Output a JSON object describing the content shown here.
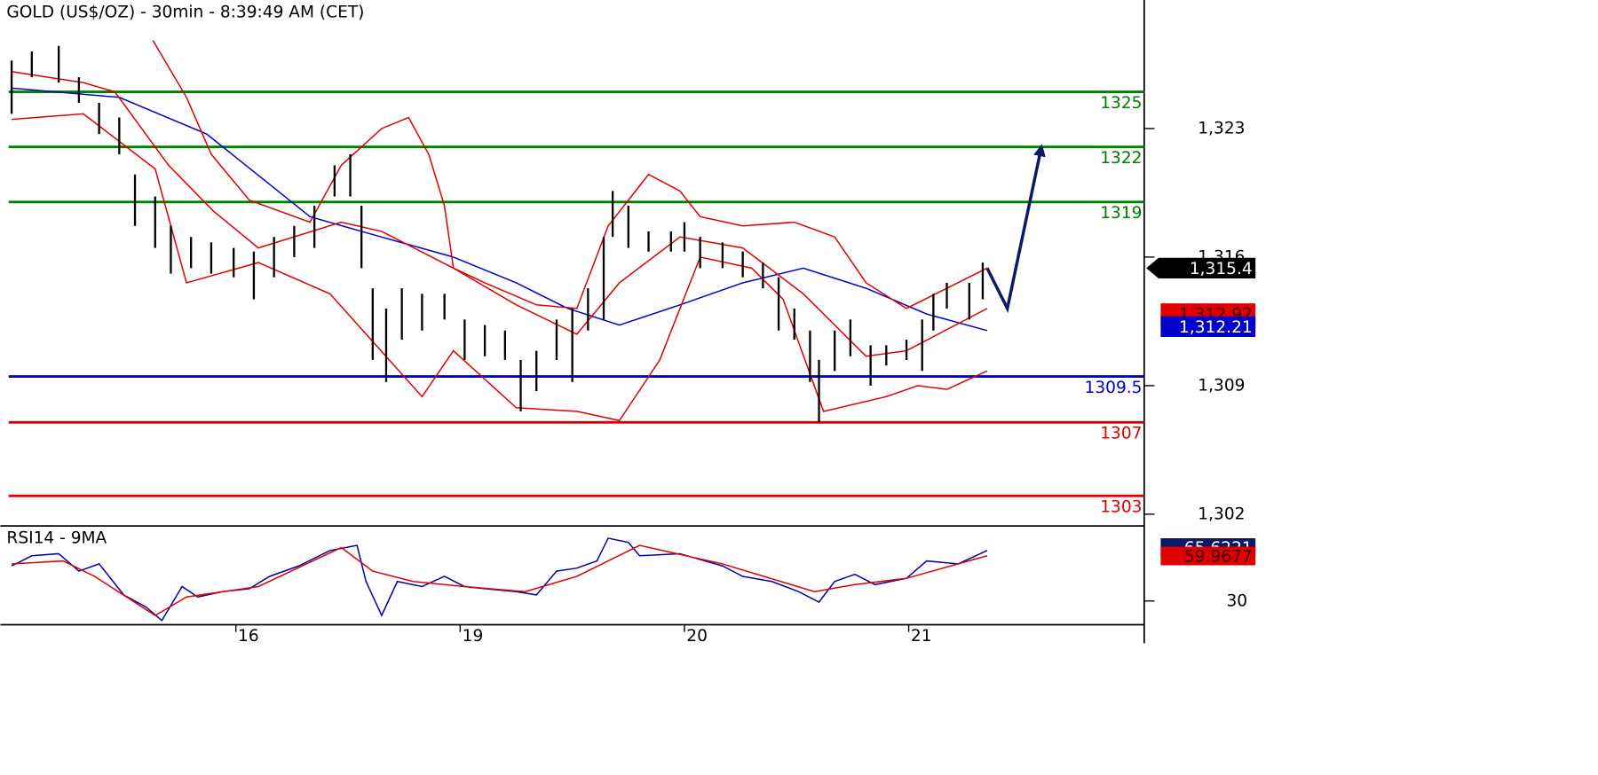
{
  "chart_data": [
    {
      "type": "ohlc",
      "title": "GOLD (US$/OZ) - 30min - 8:39:49 AM (CET)",
      "xlim": [
        -0.05,
        5.05
      ],
      "ylim": [
        1301.36,
        1330.0
      ],
      "yticks": [
        {
          "value": 1302,
          "label": "1,302"
        },
        {
          "value": 1309,
          "label": "1,309"
        },
        {
          "value": 1316,
          "label": "1,316"
        },
        {
          "value": 1323,
          "label": "1,323"
        }
      ],
      "price": {
        "color": "#000000",
        "x": [
          0,
          0.09,
          0.21,
          0.3,
          0.39,
          0.48,
          0.55,
          0.64,
          0.71,
          0.8,
          0.89,
          0.99,
          1.08,
          1.17,
          1.26,
          1.35,
          1.44,
          1.51,
          1.56,
          1.61,
          1.67,
          1.74,
          1.83,
          1.93,
          2.02,
          2.11,
          2.2,
          2.27,
          2.34,
          2.43,
          2.5,
          2.57,
          2.64,
          2.68,
          2.75,
          2.84,
          2.94,
          3.0,
          3.07,
          3.17,
          3.26,
          3.35,
          3.42,
          3.49,
          3.56,
          3.6,
          3.67,
          3.74,
          3.83,
          3.9,
          3.99,
          4.06,
          4.11,
          4.17,
          4.27,
          4.33
        ],
        "high": [
          1326.7,
          1327.2,
          1327.5,
          1325.8,
          1324.4,
          1323.6,
          1320.5,
          1319.3,
          1317.7,
          1317.1,
          1316.8,
          1316.5,
          1316.3,
          1317.1,
          1317.7,
          1318.8,
          1321.0,
          1321.6,
          1318.8,
          1314.3,
          1313.2,
          1314.3,
          1314.0,
          1314.0,
          1312.6,
          1312.3,
          1312.0,
          1310.4,
          1310.9,
          1312.6,
          1313.2,
          1314.3,
          1317.1,
          1319.6,
          1318.8,
          1317.4,
          1317.4,
          1317.9,
          1317.1,
          1316.8,
          1316.3,
          1315.7,
          1314.9,
          1313.2,
          1312.0,
          1310.4,
          1312.0,
          1312.6,
          1311.2,
          1311.2,
          1311.5,
          1312.6,
          1314.0,
          1314.6,
          1314.6,
          1315.7
        ],
        "low": [
          1323.8,
          1325.8,
          1325.5,
          1324.4,
          1322.7,
          1321.6,
          1317.7,
          1316.5,
          1315.1,
          1315.4,
          1315.1,
          1314.9,
          1313.7,
          1314.9,
          1316.0,
          1316.5,
          1319.3,
          1319.3,
          1315.4,
          1310.4,
          1309.2,
          1311.5,
          1312.0,
          1312.6,
          1310.4,
          1310.6,
          1310.4,
          1307.6,
          1308.7,
          1310.4,
          1309.2,
          1312.0,
          1312.6,
          1317.1,
          1316.5,
          1316.3,
          1316.3,
          1316.3,
          1315.4,
          1315.4,
          1314.9,
          1314.3,
          1312.0,
          1311.5,
          1309.2,
          1307.0,
          1309.8,
          1310.6,
          1309.0,
          1310.1,
          1310.4,
          1309.8,
          1312.0,
          1313.2,
          1312.6,
          1313.7
        ]
      },
      "lines": [
        {
          "color": "#0000cc",
          "x": [
            0,
            0.48,
            0.87,
            1.33,
            1.56,
            1.97,
            2.25,
            2.48,
            2.71,
            2.98,
            3.26,
            3.53,
            3.81,
            4.08,
            4.35
          ],
          "values": [
            1325.2,
            1324.7,
            1322.7,
            1318.2,
            1317.4,
            1316.0,
            1314.6,
            1313.2,
            1312.3,
            1313.4,
            1314.6,
            1315.4,
            1314.3,
            1312.9,
            1312.0
          ]
        },
        {
          "color": "#e00000",
          "x": [
            0.63,
            0.78,
            0.89,
            1.06,
            1.33,
            1.47,
            1.65,
            1.77,
            1.86,
            1.93,
            1.97,
            2.11,
            2.34,
            2.52,
            2.66,
            2.84,
            2.98,
            3.07,
            3.26,
            3.49,
            3.67,
            3.81,
            3.99,
            4.17,
            4.35
          ],
          "values": [
            1327.8,
            1324.7,
            1321.6,
            1319.1,
            1317.9,
            1321.0,
            1323.0,
            1323.6,
            1321.6,
            1318.8,
            1315.4,
            1314.6,
            1313.4,
            1313.2,
            1317.7,
            1320.5,
            1319.6,
            1318.2,
            1317.7,
            1317.9,
            1317.1,
            1314.6,
            1313.2,
            1314.3,
            1315.4
          ]
        },
        {
          "color": "#e00000",
          "x": [
            0,
            0.32,
            0.46,
            0.7,
            0.9,
            1.1,
            1.47,
            1.65,
            1.97,
            2.25,
            2.52,
            2.71,
            2.98,
            3.26,
            3.53,
            3.81,
            3.99,
            4.35
          ],
          "values": [
            1326.1,
            1325.5,
            1325.0,
            1321.0,
            1318.5,
            1316.5,
            1317.9,
            1317.4,
            1315.4,
            1313.4,
            1311.8,
            1314.6,
            1317.1,
            1316.5,
            1314.0,
            1310.6,
            1310.9,
            1313.2
          ]
        },
        {
          "color": "#e00000",
          "x": [
            0,
            0.32,
            0.64,
            0.78,
            1.1,
            1.42,
            1.83,
            1.97,
            2.25,
            2.52,
            2.71,
            2.89,
            2.98,
            3.07,
            3.3,
            3.44,
            3.62,
            3.9,
            4.04,
            4.17,
            4.35
          ],
          "values": [
            1323.5,
            1323.8,
            1320.8,
            1314.6,
            1315.7,
            1314.0,
            1308.4,
            1310.9,
            1307.8,
            1307.6,
            1307.1,
            1310.4,
            1313.2,
            1316.0,
            1315.4,
            1313.7,
            1307.6,
            1308.4,
            1309.0,
            1308.8,
            1309.8
          ]
        }
      ],
      "levels": [
        {
          "value": 1325,
          "color": "#008000"
        },
        {
          "value": 1322,
          "color": "#008000"
        },
        {
          "value": 1319,
          "color": "#008000"
        },
        {
          "value": 1309.5,
          "color": "#0000cc"
        },
        {
          "value": 1307,
          "color": "#e00000"
        },
        {
          "value": 1303,
          "color": "#e00000"
        }
      ],
      "projection": {
        "color": "#0a1a66",
        "x": [
          4.35,
          4.44,
          4.59
        ],
        "values": [
          1315.4,
          1313.2,
          1321.9
        ]
      },
      "tags": [
        {
          "value": 1315.4,
          "label": "1,315.4",
          "color": "#000000"
        },
        {
          "value": 1312.92,
          "label": "1,312.92",
          "color": "#e00000"
        },
        {
          "value": 1312.21,
          "label": "1,312.21",
          "color": "#0000cc"
        }
      ]
    },
    {
      "type": "line",
      "title": "RSI14 - 9MA",
      "xlim": [
        -0.05,
        5.05
      ],
      "ylim": [
        14.2,
        78.6
      ],
      "yticks": [
        30
      ],
      "xticks": [
        {
          "value": 1,
          "label": "16"
        },
        {
          "value": 2,
          "label": "19"
        },
        {
          "value": 3,
          "label": "20"
        },
        {
          "value": 4,
          "label": "21"
        }
      ],
      "series": [
        {
          "color": "#0000aa",
          "x": [
            0,
            0.09,
            0.21,
            0.3,
            0.39,
            0.5,
            0.6,
            0.67,
            0.76,
            0.83,
            0.94,
            1.06,
            1.15,
            1.28,
            1.42,
            1.54,
            1.58,
            1.65,
            1.72,
            1.83,
            1.93,
            2.02,
            2.11,
            2.25,
            2.34,
            2.43,
            2.52,
            2.61,
            2.66,
            2.75,
            2.8,
            2.98,
            3.17,
            3.26,
            3.39,
            3.51,
            3.6,
            3.67,
            3.76,
            3.85,
            3.99,
            4.08,
            4.22,
            4.35
          ],
          "values": [
            53.3,
            60.1,
            61.5,
            49.9,
            54.7,
            34.1,
            25.9,
            17.0,
            39.6,
            32.7,
            36.2,
            38.2,
            46.4,
            53.3,
            63.6,
            67.0,
            43.0,
            20.4,
            43.0,
            39.6,
            46.4,
            39.6,
            38.2,
            36.2,
            34.1,
            49.9,
            51.9,
            56.7,
            71.8,
            69.0,
            60.1,
            61.5,
            53.3,
            46.4,
            43.0,
            36.2,
            29.3,
            43.0,
            47.8,
            40.9,
            45.1,
            56.7,
            54.7,
            63.6
          ]
        },
        {
          "color": "#e00000",
          "x": [
            0,
            0.23,
            0.37,
            0.64,
            0.78,
            1.1,
            1.47,
            1.61,
            1.79,
            2.02,
            2.29,
            2.52,
            2.8,
            3.17,
            3.58,
            3.76,
            3.99,
            4.35
          ],
          "values": [
            54.7,
            56.7,
            46.4,
            20.4,
            32.7,
            39.6,
            65.6,
            49.9,
            43.0,
            39.6,
            36.2,
            46.4,
            67.0,
            54.7,
            36.2,
            40.9,
            45.1,
            60.1
          ]
        }
      ],
      "tags": [
        {
          "value": 65.6221,
          "label": "65.6221",
          "color": "#0a1a66"
        },
        {
          "value": 59.9677,
          "label": "59.9677",
          "color": "#e00000"
        }
      ]
    }
  ]
}
